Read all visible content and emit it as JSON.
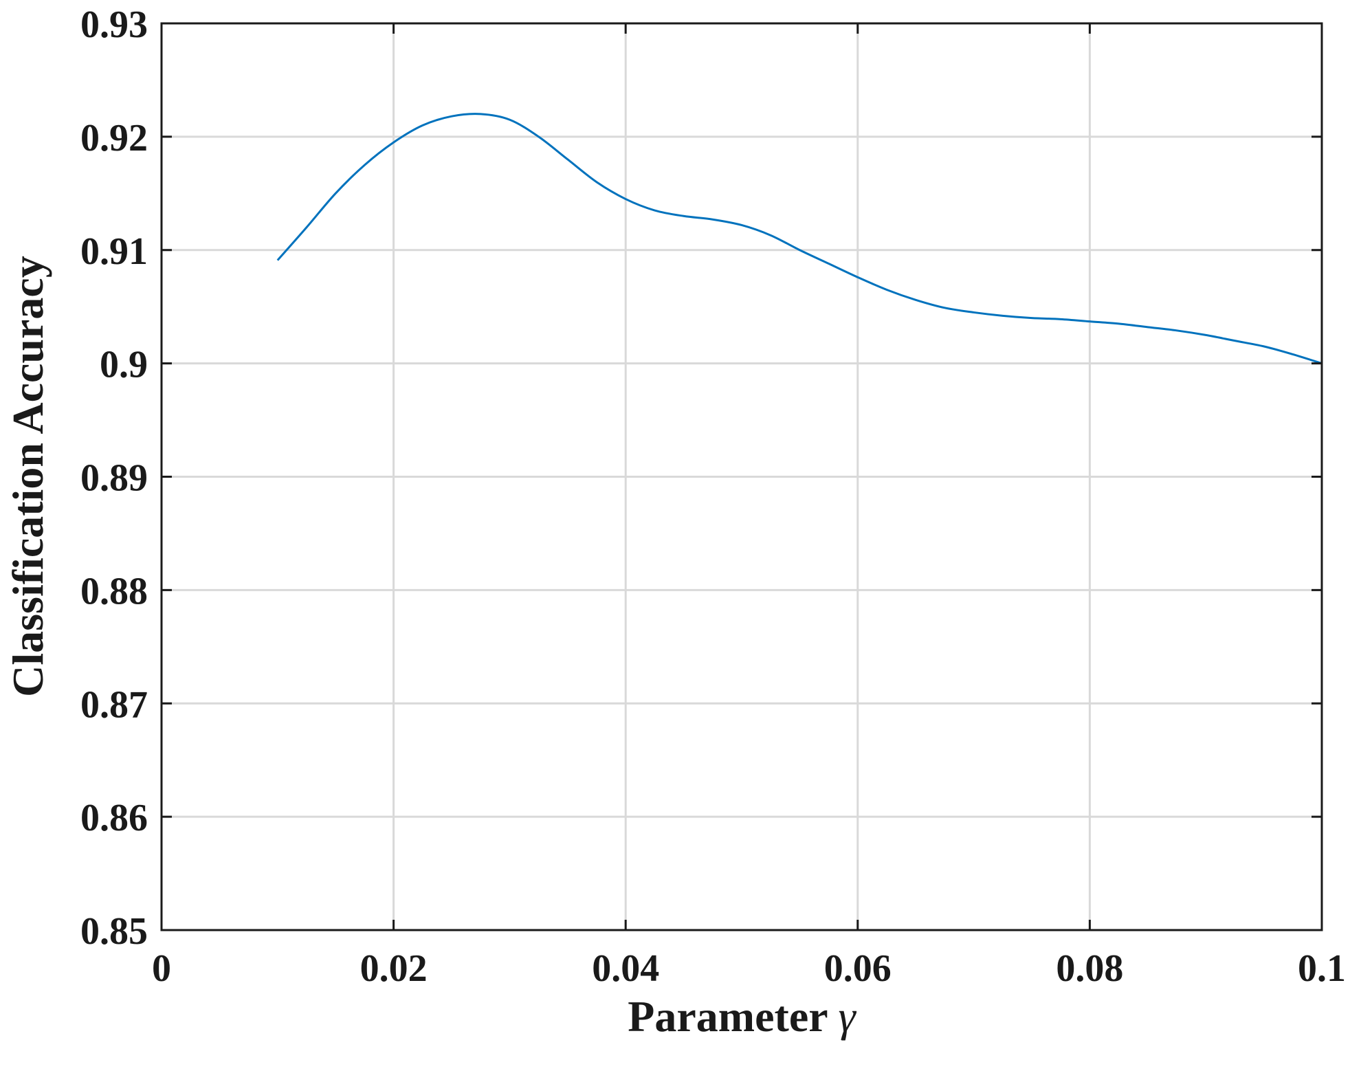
{
  "chart_data": {
    "type": "line",
    "xlabel": "Parameter",
    "xlabel_symbol": "γ",
    "ylabel": "Classification Accuracy",
    "xlim": [
      0,
      0.1
    ],
    "ylim": [
      0.85,
      0.93
    ],
    "xticks": [
      "0",
      "0.02",
      "0.04",
      "0.06",
      "0.08",
      "0.1"
    ],
    "xtick_values": [
      0,
      0.02,
      0.04,
      0.06,
      0.08,
      0.1
    ],
    "yticks": [
      "0.85",
      "0.86",
      "0.87",
      "0.88",
      "0.89",
      "0.9",
      "0.91",
      "0.92",
      "0.93"
    ],
    "ytick_values": [
      0.85,
      0.86,
      0.87,
      0.88,
      0.89,
      0.9,
      0.91,
      0.92,
      0.93
    ],
    "grid": true,
    "series": [
      {
        "color": "#0072BD",
        "x": [
          0.01,
          0.0125,
          0.015,
          0.0175,
          0.02,
          0.0225,
          0.025,
          0.0275,
          0.03,
          0.0325,
          0.035,
          0.0375,
          0.04,
          0.0425,
          0.045,
          0.0475,
          0.05,
          0.0525,
          0.055,
          0.0575,
          0.06,
          0.0625,
          0.065,
          0.0675,
          0.07,
          0.0725,
          0.075,
          0.0775,
          0.08,
          0.0825,
          0.085,
          0.0875,
          0.09,
          0.0925,
          0.095,
          0.0975,
          0.1
        ],
        "y": [
          0.9091,
          0.912,
          0.915,
          0.9175,
          0.9195,
          0.921,
          0.9218,
          0.922,
          0.9215,
          0.92,
          0.918,
          0.916,
          0.9145,
          0.9135,
          0.913,
          0.9127,
          0.9122,
          0.9113,
          0.91,
          0.9088,
          0.9076,
          0.9065,
          0.9056,
          0.9049,
          0.9045,
          0.9042,
          0.904,
          0.9039,
          0.9037,
          0.9035,
          0.9032,
          0.9029,
          0.9025,
          0.902,
          0.9015,
          0.9008,
          0.9
        ]
      }
    ]
  }
}
